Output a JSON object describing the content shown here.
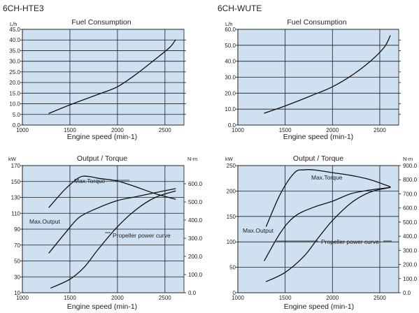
{
  "panels": {
    "a": {
      "model": "6CH-HTE3",
      "title": "Fuel Consumption",
      "unit": "L/h",
      "xlabel": "Engine speed (min-1)"
    },
    "b": {
      "model": "6CH-WUTE",
      "title": "Fuel Consumption",
      "unit": "L/h",
      "xlabel": "Engine speed (min-1)"
    },
    "c": {
      "title": "Output / Torque",
      "unit_left": "kW",
      "unit_right": "N-m",
      "xlabel": "Engine speed (min-1)",
      "ann_torque": "Max.Torque",
      "ann_output": "Max.Output",
      "ann_prop": "Propeller power curve"
    },
    "d": {
      "title": "Output / Torque",
      "unit_left": "kW",
      "unit_right": "N-m",
      "xlabel": "Engine speed (min-1)",
      "ann_torque": "Max.Torque",
      "ann_output": "Max.Output",
      "ann_prop": "Propeller power curve"
    }
  },
  "chart_data": [
    {
      "id": "a",
      "type": "line",
      "title": "Fuel Consumption",
      "xlabel": "Engine speed (min-1)",
      "ylabel": "L/h",
      "xlim": [
        1000,
        2700
      ],
      "ylim": [
        0,
        45
      ],
      "xticks": [
        "1000",
        "1500",
        "2000",
        "2500"
      ],
      "yticks": [
        "0.0",
        "5.0",
        "10.0",
        "15.0",
        "20.0",
        "25.0",
        "30.0",
        "35.0",
        "40.0",
        "45.0"
      ],
      "grid": true,
      "series": [
        {
          "x": [
            1280,
            1500,
            1800,
            2000,
            2200,
            2400,
            2550,
            2610
          ],
          "y": [
            5.5,
            9.5,
            14.5,
            18,
            24,
            31,
            36.5,
            40
          ]
        }
      ]
    },
    {
      "id": "b",
      "type": "line",
      "title": "Fuel Consumption",
      "xlabel": "Engine speed (min-1)",
      "ylabel": "L/h",
      "xlim": [
        1000,
        2700
      ],
      "ylim": [
        0,
        60
      ],
      "xticks": [
        "1000",
        "1500",
        "2000",
        "2500"
      ],
      "yticks": [
        "0.0",
        "10.0",
        "20.0",
        "30.0",
        "40.0",
        "50.0",
        "60.0"
      ],
      "grid": true,
      "series": [
        {
          "x": [
            1280,
            1500,
            1800,
            2000,
            2200,
            2400,
            2550,
            2610
          ],
          "y": [
            7.5,
            12,
            19,
            24,
            31,
            40,
            49,
            56
          ]
        }
      ]
    },
    {
      "id": "c",
      "type": "line",
      "title": "Output / Torque",
      "xlabel": "Engine speed (min-1)",
      "ylabel": "kW",
      "ylabel_right": "N-m",
      "xlim": [
        1000,
        2700
      ],
      "ylim": [
        10,
        170
      ],
      "ylim_right": [
        0,
        700
      ],
      "xticks": [
        "1000",
        "1500",
        "2000",
        "2500"
      ],
      "yticks": [
        "10",
        "30",
        "50",
        "70",
        "90",
        "110",
        "130",
        "150",
        "170"
      ],
      "yticks_right": [
        "0.0",
        "100.0",
        "200.0",
        "300.0",
        "400.0",
        "500.0",
        "600.0"
      ],
      "grid": true,
      "series": [
        {
          "name": "Max.Torque",
          "axis": "right",
          "x": [
            1280,
            1450,
            1600,
            1700,
            1800,
            2000,
            2200,
            2400,
            2610
          ],
          "y": [
            470,
            570,
            635,
            640,
            630,
            615,
            582,
            545,
            515
          ]
        },
        {
          "name": "Max.Output",
          "axis": "left",
          "x": [
            1280,
            1450,
            1600,
            1800,
            2000,
            2200,
            2400,
            2610
          ],
          "y": [
            60,
            85,
            105,
            117,
            126,
            131,
            136,
            141
          ]
        },
        {
          "name": "Propeller power curve",
          "axis": "left",
          "x": [
            1300,
            1500,
            1650,
            1800,
            2000,
            2200,
            2400,
            2610
          ],
          "y": [
            16,
            27,
            42,
            65,
            93,
            115,
            130,
            138
          ]
        }
      ]
    },
    {
      "id": "d",
      "type": "line",
      "title": "Output / Torque",
      "xlabel": "Engine speed (min-1)",
      "ylabel": "kW",
      "ylabel_right": "N-m",
      "xlim": [
        1000,
        2700
      ],
      "ylim": [
        0,
        250
      ],
      "ylim_right": [
        0,
        900
      ],
      "xticks": [
        "1000",
        "1500",
        "2000",
        "2500"
      ],
      "yticks": [
        "0",
        "50",
        "100",
        "150",
        "200",
        "250"
      ],
      "yticks_right": [
        "0.0",
        "100.0",
        "200.0",
        "300.0",
        "400.0",
        "500.0",
        "600.0",
        "700.0",
        "800.0",
        "900.0"
      ],
      "grid": true,
      "series": [
        {
          "name": "Max.Torque",
          "axis": "right",
          "x": [
            1300,
            1450,
            1600,
            1700,
            1800,
            2000,
            2200,
            2400,
            2610
          ],
          "y": [
            470,
            700,
            850,
            870,
            870,
            850,
            830,
            800,
            750
          ]
        },
        {
          "name": "Max.Output",
          "axis": "left",
          "x": [
            1280,
            1450,
            1600,
            1800,
            2000,
            2200,
            2400,
            2610
          ],
          "y": [
            63,
            118,
            150,
            168,
            180,
            195,
            202,
            207
          ]
        },
        {
          "name": "Propeller power curve",
          "axis": "left",
          "x": [
            1300,
            1500,
            1700,
            1850,
            2000,
            2200,
            2400,
            2610
          ],
          "y": [
            22,
            40,
            72,
            108,
            142,
            177,
            198,
            207
          ]
        }
      ]
    }
  ]
}
